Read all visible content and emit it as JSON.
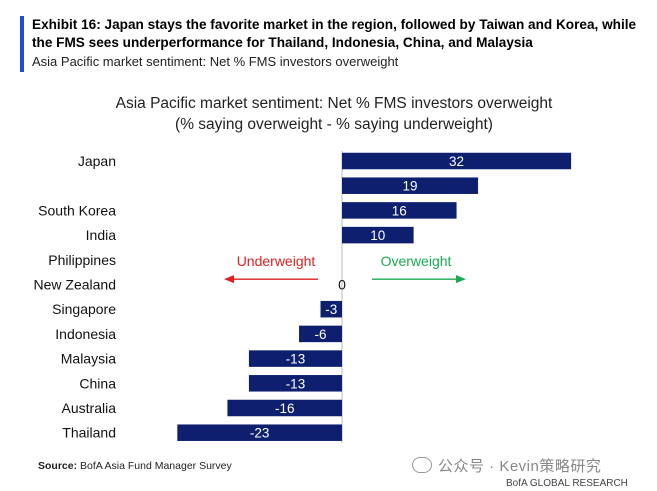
{
  "header": {
    "title": "Exhibit 16: Japan stays the favorite market in the region, followed by Taiwan and Korea, while the FMS sees underperformance for Thailand, Indonesia, China, and Malaysia",
    "subtitle": "Asia Pacific market sentiment: Net % FMS investors overweight",
    "accent_color": "#1a4fd6"
  },
  "chart_data": {
    "type": "bar",
    "orientation": "horizontal",
    "title": "Asia Pacific market sentiment: Net % FMS investors overweight",
    "subtitle": "(% saying overweight - % saying underweight)",
    "categories": [
      "Japan",
      "",
      "South Korea",
      "India",
      "Philippines",
      "New Zealand",
      "Singapore",
      "Indonesia",
      "Malaysia",
      "China",
      "Australia",
      "Thailand"
    ],
    "values": [
      32,
      19,
      16,
      10,
      0,
      0,
      -3,
      -6,
      -13,
      -13,
      -16,
      -23
    ],
    "data_labels": [
      "32",
      "19",
      "16",
      "10",
      "",
      "0",
      "-3",
      "-6",
      "-13",
      "-13",
      "-16",
      "-23"
    ],
    "bar_color": "#0d1f6e",
    "xlim": [
      -23,
      32
    ],
    "annotations": {
      "underweight": "Underweight",
      "overweight": "Overweight",
      "underweight_color": "#e02020",
      "overweight_color": "#1aaa55"
    }
  },
  "footer": {
    "source_label": "Source:",
    "source_text": " BofA Asia Fund Manager Survey",
    "watermark": "公众号 · Kevin策略研究",
    "credit": "BofA GLOBAL RESEARCH"
  }
}
